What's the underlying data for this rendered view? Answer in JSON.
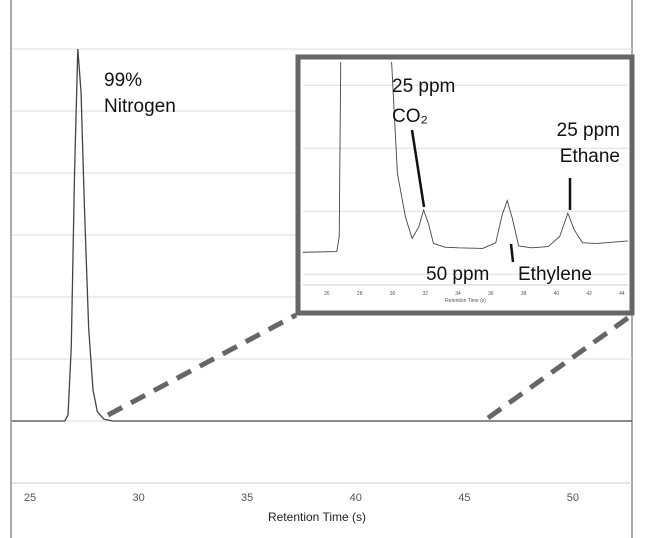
{
  "chart_data": [
    {
      "type": "line",
      "xlabel": "Retention Time (s)",
      "x": [
        24.17,
        26.6,
        26.75,
        26.9,
        27.05,
        27.2,
        27.35,
        27.5,
        27.7,
        27.9,
        28.1,
        28.4,
        28.8,
        52.72
      ],
      "values": [
        0,
        0,
        0.1,
        1.2,
        4,
        6,
        5.3,
        3.5,
        1.5,
        0.5,
        0.15,
        0.03,
        0,
        0
      ],
      "color": "#444",
      "xlim": [
        24.17,
        52.72
      ],
      "ylim": [
        -1,
        6.63
      ],
      "xticks": [
        25,
        30,
        35,
        40,
        45,
        50
      ],
      "ygrid": [
        0,
        1,
        2,
        3,
        4,
        5,
        6
      ],
      "annotations": [
        "99%",
        "Nitrogen"
      ]
    },
    {
      "type": "line",
      "xlabel": "Retention Time (s)",
      "x": [
        24.54,
        26.6,
        26.75,
        26.85,
        29.9,
        30.3,
        30.8,
        31.2,
        31.6,
        31.9,
        32.2,
        32.5,
        33.2,
        34,
        35.5,
        36.3,
        36.7,
        37,
        37.3,
        37.7,
        38.5,
        39.5,
        40.2,
        40.7,
        41.1,
        41.6,
        42.5,
        44.37
      ],
      "values": [
        0.35,
        0.36,
        0.6,
        3.6,
        3.6,
        1.6,
        0.9,
        0.57,
        0.75,
        1.02,
        0.8,
        0.49,
        0.43,
        0.42,
        0.41,
        0.5,
        0.95,
        1.17,
        0.9,
        0.45,
        0.42,
        0.44,
        0.6,
        0.97,
        0.7,
        0.5,
        0.49,
        0.53
      ],
      "color": "#444",
      "xlim": [
        24.54,
        44.37
      ],
      "ylim": [
        -0.17,
        3.37
      ],
      "xticks": [
        26,
        28,
        30,
        32,
        34,
        36,
        38,
        40,
        42,
        44
      ],
      "ygrid": [
        0,
        1,
        2,
        3
      ],
      "annotations": [
        "25 ppm",
        "CO₂",
        "25 ppm",
        "Ethane",
        "50 ppm",
        "Ethylene"
      ]
    }
  ]
}
